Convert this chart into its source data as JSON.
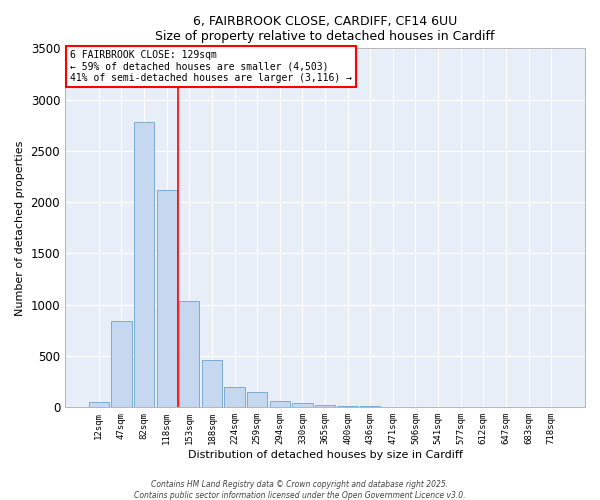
{
  "title_line1": "6, FAIRBROOK CLOSE, CARDIFF, CF14 6UU",
  "title_line2": "Size of property relative to detached houses in Cardiff",
  "xlabel": "Distribution of detached houses by size in Cardiff",
  "ylabel": "Number of detached properties",
  "bar_color": "#c5d8f0",
  "bar_edge_color": "#7aadd4",
  "background_color": "#e8eef8",
  "grid_color": "#ffffff",
  "categories": [
    "12sqm",
    "47sqm",
    "82sqm",
    "118sqm",
    "153sqm",
    "188sqm",
    "224sqm",
    "259sqm",
    "294sqm",
    "330sqm",
    "365sqm",
    "400sqm",
    "436sqm",
    "471sqm",
    "506sqm",
    "541sqm",
    "577sqm",
    "612sqm",
    "647sqm",
    "683sqm",
    "718sqm"
  ],
  "values": [
    50,
    840,
    2780,
    2120,
    1040,
    460,
    200,
    145,
    65,
    40,
    25,
    15,
    10,
    8,
    3,
    2,
    1,
    1,
    0,
    0,
    0
  ],
  "red_line_x": 3.5,
  "annotation_title": "6 FAIRBROOK CLOSE: 129sqm",
  "annotation_line2": "← 59% of detached houses are smaller (4,503)",
  "annotation_line3": "41% of semi-detached houses are larger (3,116) →",
  "ylim": [
    0,
    3500
  ],
  "yticks": [
    0,
    500,
    1000,
    1500,
    2000,
    2500,
    3000,
    3500
  ],
  "footnote1": "Contains HM Land Registry data © Crown copyright and database right 2025.",
  "footnote2": "Contains public sector information licensed under the Open Government Licence v3.0."
}
